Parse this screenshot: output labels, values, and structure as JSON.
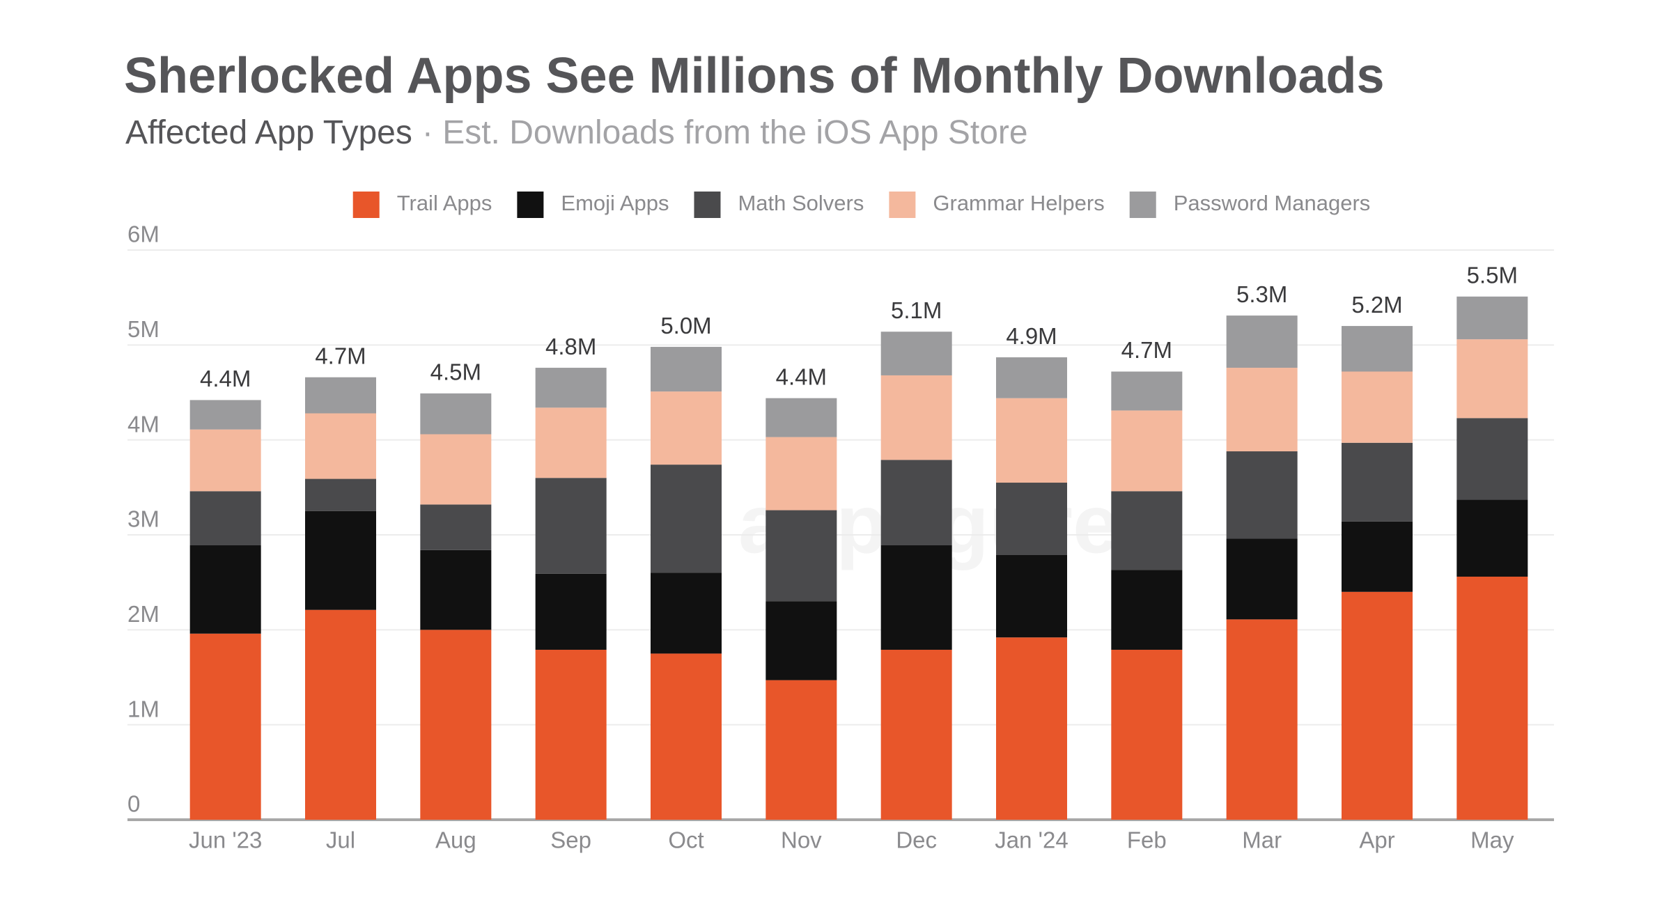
{
  "chart_data": {
    "type": "stacked_bar",
    "title": "Sherlocked Apps See Millions of Monthly Downloads",
    "subtitle": "Affected App Types",
    "subtitle_detail": "· Est. Downloads from the iOS App Store",
    "watermark": "appfigures",
    "categories": [
      "Jun '23",
      "Jul",
      "Aug",
      "Sep",
      "Oct",
      "Nov",
      "Dec",
      "Jan '24",
      "Feb",
      "Mar",
      "Apr",
      "May"
    ],
    "series": [
      {
        "name": "Trail Apps",
        "color": "#e8562a",
        "values": [
          1.96,
          2.21,
          2.0,
          1.79,
          1.75,
          1.47,
          1.79,
          1.92,
          1.79,
          2.11,
          2.4,
          2.56
        ]
      },
      {
        "name": "Emoji Apps",
        "color": "#111111",
        "values": [
          0.93,
          1.04,
          0.84,
          0.8,
          0.85,
          0.83,
          1.1,
          0.87,
          0.84,
          0.85,
          0.74,
          0.81
        ]
      },
      {
        "name": "Math Solvers",
        "color": "#4a4a4c",
        "values": [
          0.57,
          0.34,
          0.48,
          1.01,
          1.14,
          0.96,
          0.9,
          0.76,
          0.83,
          0.92,
          0.83,
          0.86
        ]
      },
      {
        "name": "Grammar Helpers",
        "color": "#f4b89d",
        "values": [
          0.65,
          0.69,
          0.74,
          0.74,
          0.77,
          0.77,
          0.89,
          0.89,
          0.85,
          0.88,
          0.75,
          0.83
        ]
      },
      {
        "name": "Password Managers",
        "color": "#9b9b9d",
        "values": [
          0.31,
          0.38,
          0.43,
          0.42,
          0.47,
          0.41,
          0.46,
          0.43,
          0.41,
          0.55,
          0.48,
          0.45
        ]
      }
    ],
    "totals": {
      "values": [
        4.4,
        4.7,
        4.5,
        4.8,
        5.0,
        4.4,
        5.1,
        4.9,
        4.7,
        5.3,
        5.2,
        5.5
      ],
      "value_labels": [
        "4.4M",
        "4.7M",
        "4.5M",
        "4.8M",
        "5.0M",
        "4.4M",
        "5.1M",
        "4.9M",
        "4.7M",
        "5.3M",
        "5.2M",
        "5.5M"
      ]
    },
    "ylim": [
      0,
      6
    ],
    "yticks": [
      0,
      {
        "value": 1,
        "label": "1M"
      },
      {
        "value": 2,
        "label": "2M"
      },
      {
        "value": 3,
        "label": "3M"
      },
      {
        "value": 4,
        "label": "4M"
      },
      {
        "value": 5,
        "label": "5M"
      },
      {
        "value": 6,
        "label": "6M"
      }
    ],
    "grid": true,
    "legend": "top"
  }
}
